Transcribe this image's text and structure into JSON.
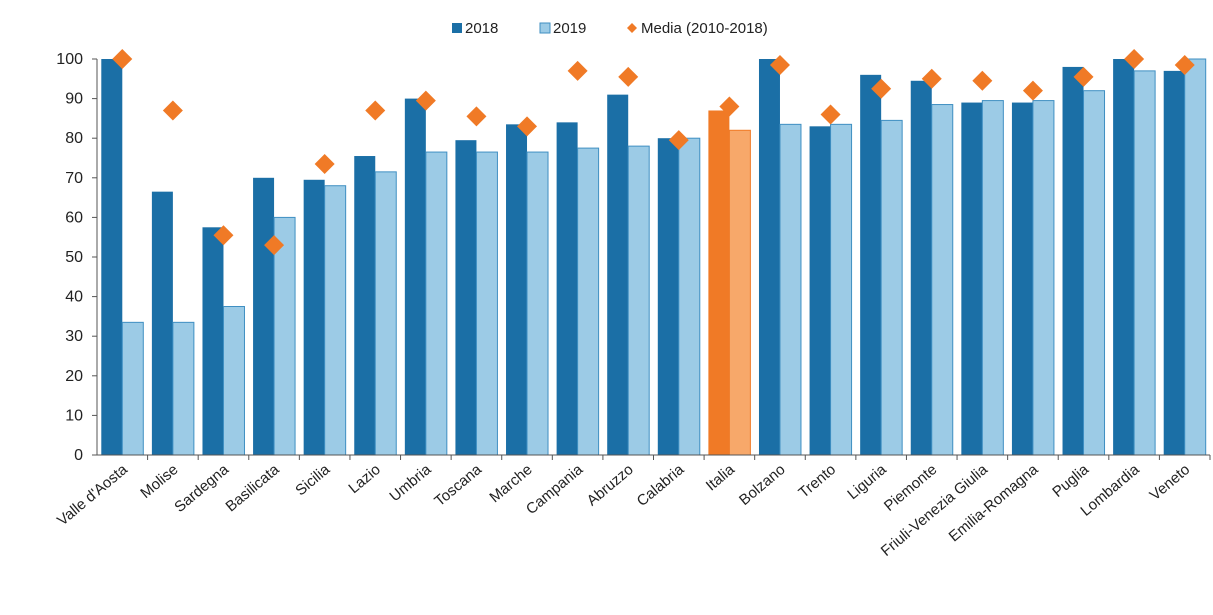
{
  "chart_data": {
    "type": "bar",
    "categories": [
      "Valle d'Aosta",
      "Molise",
      "Sardegna",
      "Basilicata",
      "Sicilia",
      "Lazio",
      "Umbria",
      "Toscana",
      "Marche",
      "Campania",
      "Abruzzo",
      "Calabria",
      "Italia",
      "Bolzano",
      "Trento",
      "Liguria",
      "Piemonte",
      "Friuli-Venezia Giulia",
      "Emilia-Romagna",
      "Puglia",
      "Lombardia",
      "Veneto"
    ],
    "series": [
      {
        "name": "2018",
        "kind": "bar",
        "values": [
          100,
          66.5,
          57.5,
          70,
          69.5,
          75.5,
          90,
          79.5,
          83.5,
          84,
          91,
          80,
          87,
          100,
          83,
          96,
          94.5,
          89,
          89,
          98,
          100,
          97
        ]
      },
      {
        "name": "2019",
        "kind": "bar",
        "values": [
          33.5,
          33.5,
          37.5,
          60,
          68,
          71.5,
          76.5,
          76.5,
          76.5,
          77.5,
          78,
          80,
          82,
          83.5,
          83.5,
          84.5,
          88.5,
          89.5,
          89.5,
          92,
          97,
          100
        ]
      },
      {
        "name": "Media (2010-2018)",
        "kind": "marker",
        "values": [
          100,
          87,
          55.5,
          53,
          73.5,
          87,
          89.5,
          85.5,
          83,
          97,
          95.5,
          79.5,
          88,
          98.5,
          86,
          92.5,
          95,
          94.5,
          92,
          95.5,
          100,
          98.5
        ]
      }
    ],
    "highlight_category": "Italia",
    "ylim": [
      0,
      100
    ],
    "yticks": [
      0,
      10,
      20,
      30,
      40,
      50,
      60,
      70,
      80,
      90,
      100
    ],
    "legend_position": "top-center",
    "grid": false,
    "colors": {
      "s2018": "#1b6fa6",
      "s2019": "#9ccbe6",
      "s2019_stroke": "#3f8fc2",
      "marker": "#f07a26",
      "highlight_2018": "#f07a26",
      "highlight_2019": "#f7a86a",
      "axis": "#555555"
    }
  }
}
